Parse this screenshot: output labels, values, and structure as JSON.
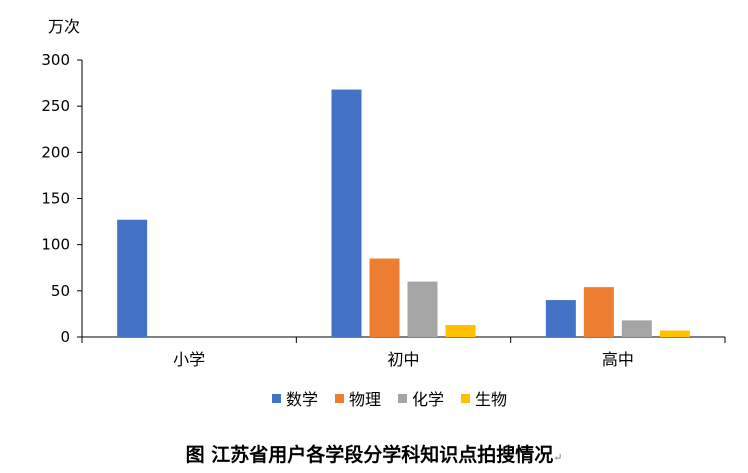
{
  "chart_data": {
    "type": "bar",
    "unit_label": "万次",
    "categories": [
      "小学",
      "初中",
      "高中"
    ],
    "series": [
      {
        "name": "数学",
        "color": "#4472C4",
        "values": [
          127,
          268,
          40
        ]
      },
      {
        "name": "物理",
        "color": "#ED7D31",
        "values": [
          0,
          85,
          54
        ]
      },
      {
        "name": "化学",
        "color": "#A5A5A5",
        "values": [
          0,
          60,
          18
        ]
      },
      {
        "name": "生物",
        "color": "#FFC000",
        "values": [
          0,
          13,
          7
        ]
      }
    ],
    "ylim": [
      0,
      300
    ],
    "yticks": [
      0,
      50,
      100,
      150,
      200,
      250,
      300
    ],
    "grid": false,
    "legend_position": "bottom"
  },
  "caption": {
    "title": "图  江苏省用户各学段分学科知识点拍搜情况",
    "mark": "↵"
  }
}
